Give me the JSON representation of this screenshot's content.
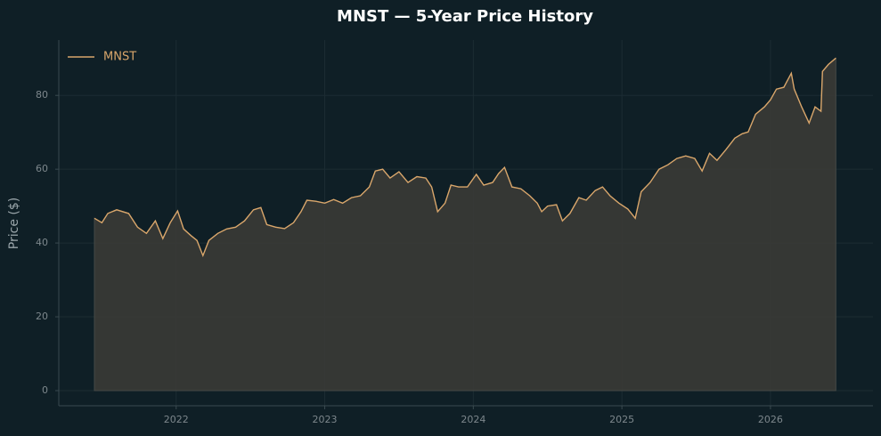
{
  "chart_data": {
    "type": "line",
    "title": "MNST — 5-Year Price History",
    "ylabel": "Price ($)",
    "x": [
      2021.45,
      2021.5,
      2021.54,
      2021.6,
      2021.68,
      2021.74,
      2021.8,
      2021.86,
      2021.91,
      2021.96,
      2022.01,
      2022.05,
      2022.1,
      2022.14,
      2022.18,
      2022.22,
      2022.28,
      2022.34,
      2022.4,
      2022.46,
      2022.52,
      2022.57,
      2022.61,
      2022.67,
      2022.73,
      2022.79,
      2022.84,
      2022.88,
      2022.94,
      2023.0,
      2023.06,
      2023.12,
      2023.18,
      2023.24,
      2023.3,
      2023.34,
      2023.39,
      2023.44,
      2023.5,
      2023.56,
      2023.62,
      2023.68,
      2023.72,
      2023.76,
      2023.81,
      2023.85,
      2023.9,
      2023.96,
      2024.02,
      2024.07,
      2024.13,
      2024.17,
      2024.21,
      2024.26,
      2024.32,
      2024.38,
      2024.43,
      2024.46,
      2024.5,
      2024.56,
      2024.6,
      2024.65,
      2024.71,
      2024.76,
      2024.82,
      2024.87,
      2024.92,
      2024.98,
      2025.04,
      2025.09,
      2025.13,
      2025.19,
      2025.25,
      2025.31,
      2025.37,
      2025.43,
      2025.49,
      2025.54,
      2025.59,
      2025.64,
      2025.7,
      2025.76,
      2025.81,
      2025.85,
      2025.9,
      2025.96,
      2026.0,
      2026.04,
      2026.09,
      2026.14,
      2026.16,
      2026.21,
      2026.26,
      2026.3,
      2026.34,
      2026.35,
      2026.39,
      2026.44
    ],
    "series": [
      {
        "name": "MNST",
        "color": "#d9a66b",
        "values": [
          46.7,
          45.5,
          48,
          49,
          48,
          44.3,
          42.6,
          46,
          41.2,
          45.5,
          48.7,
          43.8,
          42,
          40.7,
          36.6,
          40.7,
          42.6,
          43.8,
          44.3,
          46,
          49,
          49.6,
          45,
          44.3,
          43.9,
          45.5,
          48.5,
          51.6,
          51.3,
          50.8,
          51.8,
          50.8,
          52.3,
          52.8,
          55.2,
          59.5,
          60,
          57.6,
          59.3,
          56.4,
          58,
          57.6,
          55.2,
          48.5,
          50.8,
          55.7,
          55.2,
          55.2,
          58.6,
          55.7,
          56.4,
          58.8,
          60.5,
          55.2,
          54.7,
          52.8,
          50.8,
          48.5,
          50,
          50.4,
          46,
          48,
          52.3,
          51.6,
          54.2,
          55.2,
          52.8,
          50.8,
          49.2,
          46.7,
          53.9,
          56.4,
          60,
          61.2,
          62.9,
          63.6,
          62.9,
          59.5,
          64.3,
          62.4,
          65.3,
          68.4,
          69.6,
          70.1,
          74.9,
          76.9,
          78.8,
          81.7,
          82.2,
          86,
          81.7,
          76.9,
          72.5,
          76.9,
          75.7,
          86.5,
          88.4,
          90.1
        ]
      }
    ],
    "xlim": [
      2021.21,
      2026.69
    ],
    "xticks": [
      2022,
      2023,
      2024,
      2025,
      2026
    ],
    "ylim": [
      -4.1,
      95
    ],
    "yticks": [
      0,
      20,
      40,
      60,
      80
    ],
    "grid": true,
    "legend": "upper left",
    "fill_color": "#3a3a36"
  }
}
